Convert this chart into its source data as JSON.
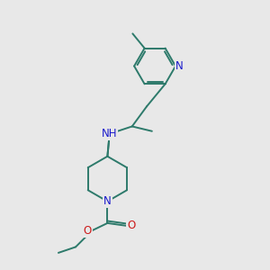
{
  "bg_color": "#e8e8e8",
  "bond_color": "#2d7a6b",
  "N_color": "#1a1acc",
  "O_color": "#cc1a1a",
  "lw": 1.4,
  "font_size": 8.5,
  "fig_size": [
    3.0,
    3.0
  ],
  "dpi": 100,
  "xlim": [
    0,
    10
  ],
  "ylim": [
    0,
    10
  ]
}
